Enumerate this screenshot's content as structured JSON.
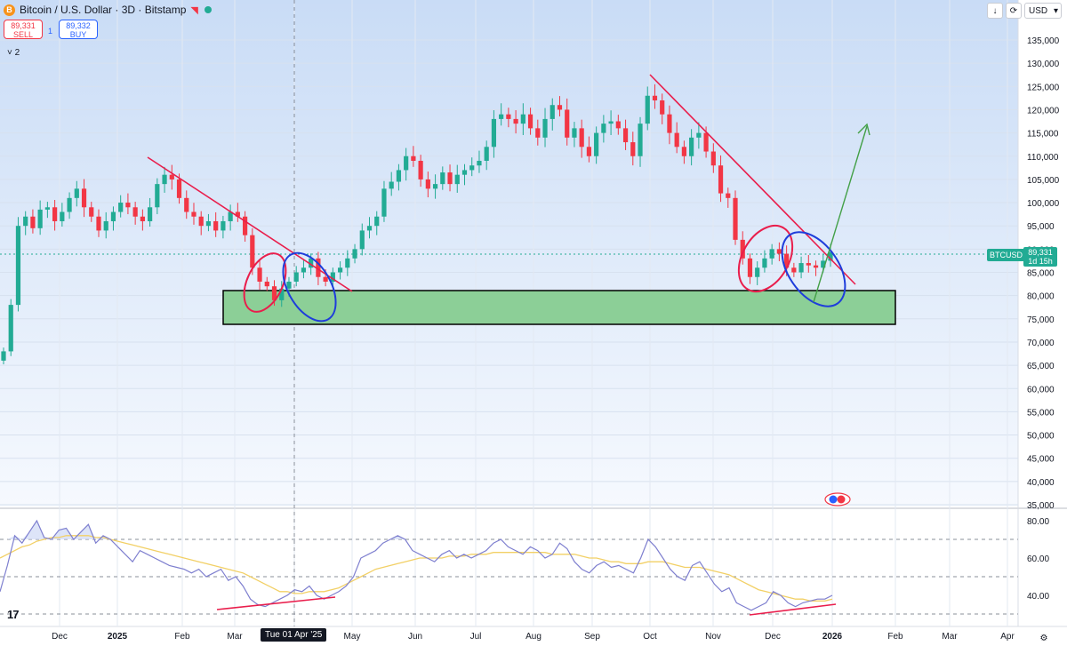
{
  "header": {
    "coin_icon": "bitcoin-icon",
    "coin_glyph": "B",
    "title": "Bitcoin / U.S. Dollar · 3D · Bitstamp",
    "flag_icon": "flag-icon",
    "status_icon": "market-open-dot-icon"
  },
  "trade": {
    "sell_price": "89,331",
    "sell_label": "SELL",
    "spread": "1",
    "buy_price": "89,332",
    "buy_label": "BUY"
  },
  "indicators": {
    "toggle": "˅ 2"
  },
  "toolbar": {
    "down_icon": "arrow-down-icon",
    "down_glyph": "↓",
    "sync_icon": "sync-icon",
    "sync_glyph": "⟳",
    "currency": "USD",
    "currency_chevron": "▾"
  },
  "footer": {
    "logo_text": "17",
    "crosshair_date": "Tue 01 Apr '25",
    "settings_icon": "gear-icon",
    "settings_glyph": "⚙"
  },
  "price_label": {
    "symbol": "BTCUSD",
    "price": "89,331",
    "countdown": "1d 15h"
  },
  "colors": {
    "up": "#22ab94",
    "down": "#f23645",
    "trend_line": "#e91e4c",
    "zone": "#8ccf97",
    "rsi": "#7e7fcf",
    "rsi_ma": "#f2d066",
    "projection": "#43a047"
  },
  "chart_data": [
    {
      "type": "candlestick",
      "title": "Bitcoin / U.S. Dollar · 3D · Bitstamp",
      "x_tick_labels": [
        "Dec",
        "2025",
        "Feb",
        "Mar",
        "Apr",
        "May",
        "Jun",
        "Jul",
        "Aug",
        "Sep",
        "Oct",
        "Nov",
        "Dec",
        "2026",
        "Feb",
        "Mar",
        "Apr"
      ],
      "y_tick_labels": [
        "135,000",
        "130,000",
        "125,000",
        "120,000",
        "115,000",
        "110,000",
        "105,000",
        "100,000",
        "95,000",
        "90,000",
        "85,000",
        "80,000",
        "75,000",
        "70,000",
        "65,000",
        "60,000",
        "55,000",
        "50,000",
        "45,000",
        "40,000",
        "35,000"
      ],
      "ylim": [
        34000,
        137000
      ],
      "last_price": 89331,
      "close_series": [
        68000,
        78000,
        95000,
        97000,
        94500,
        98500,
        99000,
        96000,
        98000,
        101000,
        103000,
        99000,
        97000,
        94000,
        96000,
        98000,
        100000,
        99000,
        97000,
        96000,
        99000,
        104000,
        106000,
        105000,
        101000,
        98000,
        97000,
        95000,
        96000,
        94000,
        96000,
        98000,
        97000,
        93000,
        86000,
        83000,
        82000,
        79000,
        81500,
        83000,
        85000,
        86000,
        88000,
        84000,
        83000,
        85000,
        86000,
        88000,
        90000,
        94000,
        95000,
        97000,
        103000,
        104500,
        107000,
        110000,
        109000,
        105000,
        103000,
        104000,
        106500,
        104000,
        106000,
        107000,
        108000,
        109000,
        112000,
        118000,
        119000,
        118000,
        117000,
        119000,
        116000,
        114000,
        118000,
        121000,
        120000,
        114000,
        116000,
        112000,
        110000,
        115000,
        117000,
        117500,
        116000,
        113000,
        110000,
        117000,
        123000,
        122000,
        119000,
        115000,
        112000,
        110000,
        114000,
        115000,
        111000,
        108000,
        102000,
        101000,
        92000,
        88000,
        84000,
        86000,
        88000,
        90000,
        89000,
        86000,
        85000,
        87000,
        86500,
        86000,
        87500,
        89331
      ],
      "resistance_zone": [
        74000,
        81000
      ],
      "annotations": [
        "descending trendline (Jan–Mar 2025)",
        "descending trendline (Oct–Dec 2025)",
        "projected breakout arrow"
      ]
    },
    {
      "type": "line",
      "name": "RSI",
      "y_tick_labels": [
        "80.00",
        "60.00",
        "40.00"
      ],
      "ylim": [
        28,
        86
      ],
      "levels": [
        70,
        50,
        30
      ],
      "series": [
        {
          "values": [
            42,
            56,
            72,
            68,
            74,
            80,
            71,
            70,
            75,
            76,
            70,
            74,
            78,
            68,
            72,
            70,
            66,
            62,
            58,
            64,
            62,
            60,
            58,
            56,
            55,
            54,
            52,
            54,
            50,
            52,
            54,
            48,
            50,
            45,
            38,
            35,
            34,
            36,
            38,
            40,
            43,
            42,
            45,
            40,
            38,
            40,
            42,
            45,
            50,
            60,
            62,
            64,
            68,
            70,
            72,
            70,
            64,
            62,
            60,
            58,
            62,
            64,
            60,
            62,
            60,
            62,
            64,
            68,
            70,
            66,
            64,
            62,
            66,
            64,
            60,
            62,
            68,
            65,
            58,
            54,
            52,
            56,
            58,
            55,
            56,
            54,
            52,
            60,
            70,
            66,
            60,
            54,
            50,
            48,
            56,
            58,
            52,
            46,
            42,
            44,
            36,
            34,
            32,
            34,
            36,
            42,
            40,
            36,
            34,
            36,
            37,
            38,
            38,
            40
          ]
        },
        {
          "values": [
            60,
            62,
            64,
            66,
            67,
            69,
            70,
            71,
            71,
            72,
            72,
            72,
            72,
            71,
            71,
            70,
            69,
            68,
            67,
            66,
            65,
            64,
            63,
            62,
            61,
            60,
            59,
            58,
            57,
            56,
            55,
            54,
            53,
            52,
            50,
            48,
            46,
            44,
            42,
            42,
            41,
            41,
            42,
            42,
            42,
            43,
            44,
            46,
            48,
            50,
            52,
            54,
            55,
            56,
            57,
            58,
            59,
            60,
            60,
            60,
            60,
            61,
            61,
            61,
            62,
            62,
            62,
            63,
            63,
            63,
            63,
            63,
            63,
            63,
            63,
            62,
            62,
            62,
            62,
            61,
            60,
            60,
            59,
            58,
            58,
            57,
            57,
            57,
            58,
            58,
            58,
            57,
            56,
            55,
            55,
            55,
            54,
            53,
            52,
            51,
            49,
            47,
            45,
            43,
            42,
            41,
            40,
            39,
            38,
            38,
            37,
            37,
            37,
            38
          ]
        }
      ]
    }
  ]
}
